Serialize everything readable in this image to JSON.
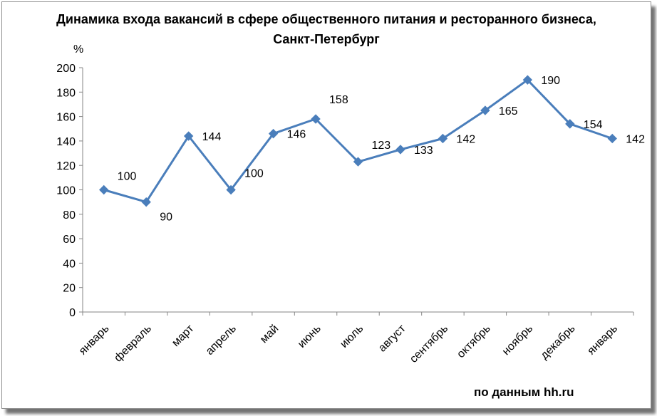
{
  "chart_data": {
    "type": "line",
    "title_lines": [
      "Динамика входа вакансий в сфере общественного питания и ресторанного бизнеса,",
      "Санкт-Петербург"
    ],
    "ylabel": "%",
    "xlabel": "",
    "ylim": [
      0,
      200
    ],
    "yticks": [
      0,
      20,
      40,
      60,
      80,
      100,
      120,
      140,
      160,
      180,
      200
    ],
    "grid": false,
    "categories": [
      "январь",
      "февраль",
      "март",
      "апрель",
      "май",
      "июнь",
      "июль",
      "август",
      "сентябрь",
      "октябрь",
      "ноябрь",
      "декабрь",
      "январь"
    ],
    "series": [
      {
        "values": [
          100,
          90,
          144,
          100,
          146,
          158,
          123,
          133,
          142,
          165,
          190,
          154,
          142
        ],
        "color": "#4a7ebb"
      }
    ],
    "source_note": "по данным hh.ru"
  }
}
